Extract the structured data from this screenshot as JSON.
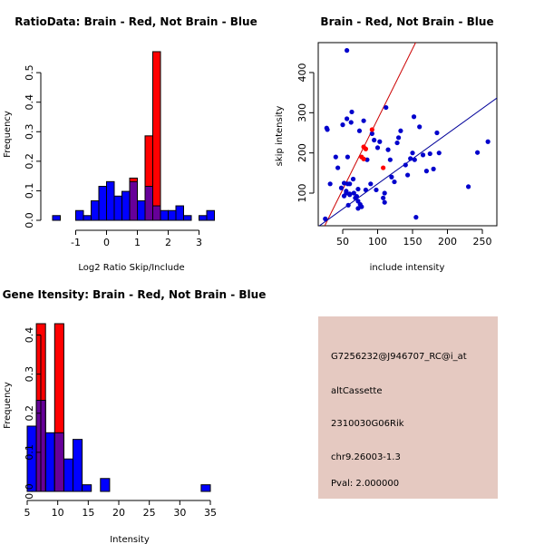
{
  "chart_data": [
    {
      "type": "bar",
      "title": "RatioData: Brain - Red, Not Brain - Blue",
      "xlabel": "Log2 Ratio Skip/Include",
      "ylabel": "Frequency",
      "xlim": [
        -1.8,
        3.5
      ],
      "ylim": [
        0,
        0.57
      ],
      "xticks": [
        -1,
        0,
        1,
        2,
        3
      ],
      "yticks": [
        0.0,
        0.1,
        0.2,
        0.3,
        0.4,
        0.5
      ],
      "bin_width": 0.25,
      "series": [
        {
          "name": "Not Brain",
          "color": "#0000ff",
          "bins": [
            [
              -1.75,
              0.016
            ],
            [
              -1.0,
              0.033
            ],
            [
              -0.75,
              0.016
            ],
            [
              -0.5,
              0.066
            ],
            [
              -0.25,
              0.115
            ],
            [
              0.0,
              0.131
            ],
            [
              0.25,
              0.082
            ],
            [
              0.5,
              0.098
            ],
            [
              0.75,
              0.131
            ],
            [
              1.0,
              0.066
            ],
            [
              1.25,
              0.115
            ],
            [
              1.5,
              0.049
            ],
            [
              1.75,
              0.033
            ],
            [
              2.0,
              0.033
            ],
            [
              2.25,
              0.049
            ],
            [
              2.5,
              0.016
            ],
            [
              3.0,
              0.016
            ],
            [
              3.25,
              0.033
            ]
          ]
        },
        {
          "name": "Brain",
          "color": "#ff0000",
          "bins": [
            [
              0.75,
              0.143
            ],
            [
              1.25,
              0.286
            ],
            [
              1.5,
              0.571
            ]
          ]
        }
      ]
    },
    {
      "type": "scatter",
      "title": "Brain - Red, Not Brain - Blue",
      "xlabel": "include intensity",
      "ylabel": "skip intensity",
      "xlim": [
        20,
        265
      ],
      "ylim": [
        25,
        460
      ],
      "xticks": [
        50,
        100,
        150,
        200,
        250
      ],
      "yticks": [
        100,
        200,
        300,
        400
      ],
      "series": [
        {
          "name": "Not Brain",
          "color": "#0000cc",
          "points": [
            [
              56,
              455
            ],
            [
              27,
              262
            ],
            [
              28,
              258
            ],
            [
              25,
              36
            ],
            [
              32,
              123
            ],
            [
              40,
              190
            ],
            [
              43,
              163
            ],
            [
              48,
              113
            ],
            [
              50,
              270
            ],
            [
              52,
              125
            ],
            [
              52,
              93
            ],
            [
              55,
              105
            ],
            [
              55,
              100
            ],
            [
              56,
              285
            ],
            [
              57,
              123
            ],
            [
              57,
              190
            ],
            [
              58,
              70
            ],
            [
              60,
              98
            ],
            [
              60,
              123
            ],
            [
              60,
              96
            ],
            [
              62,
              276
            ],
            [
              63,
              302
            ],
            [
              65,
              135
            ],
            [
              66,
              100
            ],
            [
              68,
              88
            ],
            [
              70,
              92
            ],
            [
              72,
              110
            ],
            [
              72,
              62
            ],
            [
              72,
              80
            ],
            [
              74,
              255
            ],
            [
              75,
              72
            ],
            [
              77,
              66
            ],
            [
              80,
              280
            ],
            [
              83,
              108
            ],
            [
              85,
              183
            ],
            [
              90,
              123
            ],
            [
              92,
              248
            ],
            [
              95,
              232
            ],
            [
              98,
              108
            ],
            [
              100,
              213
            ],
            [
              103,
              228
            ],
            [
              108,
              88
            ],
            [
              110,
              77
            ],
            [
              110,
              100
            ],
            [
              112,
              313
            ],
            [
              115,
              208
            ],
            [
              118,
              183
            ],
            [
              120,
              140
            ],
            [
              124,
              128
            ],
            [
              128,
              225
            ],
            [
              130,
              238
            ],
            [
              133,
              255
            ],
            [
              140,
              170
            ],
            [
              143,
              145
            ],
            [
              147,
              186
            ],
            [
              150,
              200
            ],
            [
              152,
              290
            ],
            [
              153,
              183
            ],
            [
              155,
              40
            ],
            [
              160,
              265
            ],
            [
              165,
              195
            ],
            [
              170,
              155
            ],
            [
              175,
              198
            ],
            [
              180,
              160
            ],
            [
              185,
              250
            ],
            [
              188,
              200
            ],
            [
              230,
              116
            ],
            [
              243,
              201
            ],
            [
              258,
              228
            ]
          ]
        },
        {
          "name": "Brain",
          "color": "#ff0000",
          "points": [
            [
              77,
              190
            ],
            [
              80,
              185
            ],
            [
              80,
              215
            ],
            [
              83,
              210
            ],
            [
              92,
              258
            ],
            [
              108,
              163
            ]
          ]
        }
      ],
      "lines": [
        {
          "name": "Brain fit",
          "color": "#cc0000",
          "intercept": -66,
          "slope": 3.5
        },
        {
          "name": "Not Brain fit",
          "color": "#000099",
          "intercept": -2,
          "slope": 1.25
        }
      ]
    },
    {
      "type": "bar",
      "title": "Gene Itensity: Brain - Red, Not Brain - Blue",
      "xlabel": "Intensity",
      "ylabel": "Frequency",
      "xlim": [
        3.5,
        36.5
      ],
      "ylim": [
        0,
        0.43
      ],
      "xticks": [
        5,
        10,
        15,
        20,
        25,
        30,
        35
      ],
      "yticks": [
        0.0,
        0.1,
        0.2,
        0.3,
        0.4
      ],
      "bin_width": 1.5,
      "series": [
        {
          "name": "Not Brain",
          "color": "#0000ff",
          "bins": [
            [
              5,
              0.167
            ],
            [
              6.5,
              0.233
            ],
            [
              8,
              0.15
            ],
            [
              9.5,
              0.15
            ],
            [
              11,
              0.083
            ],
            [
              12.5,
              0.133
            ],
            [
              14,
              0.017
            ],
            [
              17,
              0.033
            ],
            [
              33.5,
              0.017
            ]
          ]
        },
        {
          "name": "Brain",
          "color": "#ff0000",
          "bins": [
            [
              6.5,
              0.429
            ],
            [
              9.5,
              0.429
            ]
          ]
        }
      ]
    }
  ],
  "info_panel": {
    "background": "#e5c9c1",
    "lines": [
      "G7256232@J946707_RC@i_at",
      "altCassette",
      "2310030G06Rik",
      "chr9.26003-1.3"
    ],
    "pval": "Pval: 2.000000",
    "pval_color": "#cc0000"
  }
}
